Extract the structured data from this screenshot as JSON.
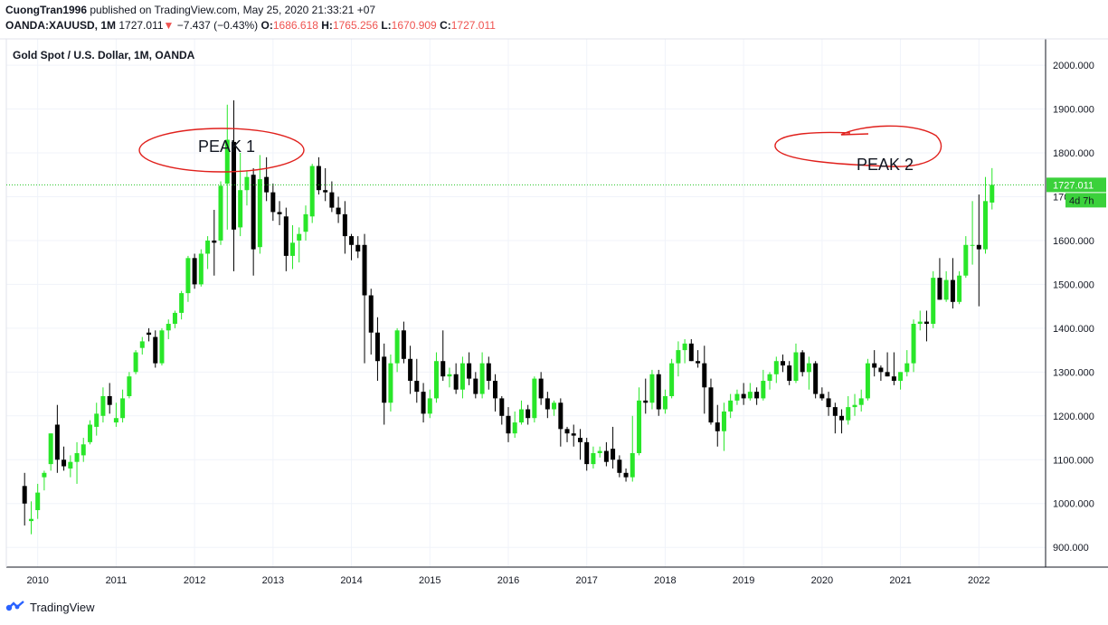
{
  "header": {
    "author": "CuongTran1996",
    "published_text": "published on TradingView.com, May 25, 2020 21:33:21 +07",
    "symbol": "OANDA:XAUUSD, 1M",
    "last": "1727.011",
    "change_arrow": "▼",
    "change": "−7.437 (−0.43%)",
    "o_label": "O:",
    "o_value": "1686.618",
    "h_label": "H:",
    "h_value": "1765.256",
    "l_label": "L:",
    "l_value": "1670.909",
    "c_label": "C:",
    "c_value": "1727.011"
  },
  "footer": {
    "brand": "TradingView"
  },
  "colors": {
    "up": "#29e629",
    "down": "#000000",
    "annotation": "#e0201c",
    "price_line": "#22c422",
    "grid": "#f0f3fa"
  },
  "chart_data": {
    "type": "candlestick",
    "title": "Gold Spot / U.S. Dollar, 1M, OANDA",
    "timeframe": "1M",
    "x_tick_labels": [
      "2010",
      "2011",
      "2012",
      "2013",
      "2014",
      "2015",
      "2016",
      "2017",
      "2018",
      "2019",
      "2020",
      "2021",
      "2022"
    ],
    "y_tick_labels": [
      "900.000",
      "1000.000",
      "1100.000",
      "1200.000",
      "1300.000",
      "1400.000",
      "1500.000",
      "1600.000",
      "1700.000",
      "1800.000",
      "1900.000",
      "2000.000"
    ],
    "ylim": [
      855,
      2060
    ],
    "xlim": [
      2009.6,
      2022.85
    ],
    "grid": true,
    "current_price": 1727.011,
    "current_price_label": "1727.011",
    "countdown_label": "4d 7h",
    "annotations": [
      {
        "text": "PEAK 1",
        "date": "2012.0",
        "price": 1800
      },
      {
        "text": "PEAK 2",
        "date": "2020.45",
        "price": 1752
      }
    ],
    "candles": [
      {
        "t": 2009.833,
        "o": 1040,
        "h": 1070,
        "l": 950,
        "c": 1000
      },
      {
        "t": 2009.917,
        "o": 960,
        "h": 1005,
        "l": 930,
        "c": 965
      },
      {
        "t": 2010.0,
        "o": 985,
        "h": 1045,
        "l": 965,
        "c": 1025
      },
      {
        "t": 2010.083,
        "o": 1060,
        "h": 1075,
        "l": 1030,
        "c": 1070
      },
      {
        "t": 2010.167,
        "o": 1090,
        "h": 1160,
        "l": 1075,
        "c": 1160
      },
      {
        "t": 2010.25,
        "o": 1180,
        "h": 1225,
        "l": 1070,
        "c": 1100
      },
      {
        "t": 2010.333,
        "o": 1100,
        "h": 1130,
        "l": 1075,
        "c": 1085
      },
      {
        "t": 2010.417,
        "o": 1080,
        "h": 1110,
        "l": 1060,
        "c": 1095
      },
      {
        "t": 2010.5,
        "o": 1095,
        "h": 1140,
        "l": 1045,
        "c": 1115
      },
      {
        "t": 2010.583,
        "o": 1110,
        "h": 1150,
        "l": 1095,
        "c": 1135
      },
      {
        "t": 2010.667,
        "o": 1140,
        "h": 1190,
        "l": 1135,
        "c": 1180
      },
      {
        "t": 2010.75,
        "o": 1175,
        "h": 1230,
        "l": 1155,
        "c": 1205
      },
      {
        "t": 2010.833,
        "o": 1200,
        "h": 1265,
        "l": 1185,
        "c": 1245
      },
      {
        "t": 2010.917,
        "o": 1245,
        "h": 1275,
        "l": 1205,
        "c": 1225
      },
      {
        "t": 2011.0,
        "o": 1185,
        "h": 1230,
        "l": 1175,
        "c": 1195
      },
      {
        "t": 2011.083,
        "o": 1195,
        "h": 1260,
        "l": 1185,
        "c": 1240
      },
      {
        "t": 2011.167,
        "o": 1245,
        "h": 1300,
        "l": 1240,
        "c": 1290
      },
      {
        "t": 2011.25,
        "o": 1300,
        "h": 1350,
        "l": 1295,
        "c": 1345
      },
      {
        "t": 2011.333,
        "o": 1355,
        "h": 1380,
        "l": 1340,
        "c": 1370
      },
      {
        "t": 2011.417,
        "o": 1390,
        "h": 1400,
        "l": 1370,
        "c": 1385
      },
      {
        "t": 2011.5,
        "o": 1380,
        "h": 1395,
        "l": 1310,
        "c": 1320
      },
      {
        "t": 2011.583,
        "o": 1320,
        "h": 1400,
        "l": 1315,
        "c": 1395
      },
      {
        "t": 2011.667,
        "o": 1395,
        "h": 1420,
        "l": 1375,
        "c": 1410
      },
      {
        "t": 2011.75,
        "o": 1410,
        "h": 1440,
        "l": 1400,
        "c": 1435
      },
      {
        "t": 2011.833,
        "o": 1435,
        "h": 1485,
        "l": 1420,
        "c": 1480
      },
      {
        "t": 2011.917,
        "o": 1480,
        "h": 1565,
        "l": 1460,
        "c": 1560
      },
      {
        "t": 2012.0,
        "o": 1560,
        "h": 1570,
        "l": 1490,
        "c": 1500
      },
      {
        "t": 2012.083,
        "o": 1500,
        "h": 1580,
        "l": 1495,
        "c": 1570
      },
      {
        "t": 2012.167,
        "o": 1570,
        "h": 1610,
        "l": 1535,
        "c": 1600
      },
      {
        "t": 2012.25,
        "o": 1600,
        "h": 1670,
        "l": 1520,
        "c": 1595
      },
      {
        "t": 2012.333,
        "o": 1600,
        "h": 1735,
        "l": 1590,
        "c": 1725
      },
      {
        "t": 2012.417,
        "o": 1730,
        "h": 1910,
        "l": 1625,
        "c": 1830
      },
      {
        "t": 2012.5,
        "o": 1825,
        "h": 1920,
        "l": 1530,
        "c": 1625
      },
      {
        "t": 2012.583,
        "o": 1630,
        "h": 1800,
        "l": 1610,
        "c": 1715
      },
      {
        "t": 2012.667,
        "o": 1715,
        "h": 1760,
        "l": 1680,
        "c": 1745
      },
      {
        "t": 2012.75,
        "o": 1750,
        "h": 1765,
        "l": 1520,
        "c": 1580
      },
      {
        "t": 2012.833,
        "o": 1585,
        "h": 1795,
        "l": 1570,
        "c": 1740
      },
      {
        "t": 2012.917,
        "o": 1745,
        "h": 1790,
        "l": 1690,
        "c": 1710
      },
      {
        "t": 2013.0,
        "o": 1710,
        "h": 1730,
        "l": 1645,
        "c": 1665
      },
      {
        "t": 2013.083,
        "o": 1665,
        "h": 1690,
        "l": 1635,
        "c": 1660
      },
      {
        "t": 2013.167,
        "o": 1655,
        "h": 1675,
        "l": 1530,
        "c": 1565
      },
      {
        "t": 2013.25,
        "o": 1565,
        "h": 1635,
        "l": 1535,
        "c": 1595
      },
      {
        "t": 2013.333,
        "o": 1600,
        "h": 1630,
        "l": 1550,
        "c": 1615
      },
      {
        "t": 2013.417,
        "o": 1620,
        "h": 1680,
        "l": 1600,
        "c": 1660
      },
      {
        "t": 2013.5,
        "o": 1655,
        "h": 1775,
        "l": 1640,
        "c": 1770
      },
      {
        "t": 2013.583,
        "o": 1770,
        "h": 1790,
        "l": 1705,
        "c": 1715
      },
      {
        "t": 2013.667,
        "o": 1715,
        "h": 1765,
        "l": 1690,
        "c": 1710
      },
      {
        "t": 2013.75,
        "o": 1710,
        "h": 1735,
        "l": 1665,
        "c": 1675
      },
      {
        "t": 2013.833,
        "o": 1675,
        "h": 1700,
        "l": 1640,
        "c": 1660
      },
      {
        "t": 2013.917,
        "o": 1660,
        "h": 1690,
        "l": 1570,
        "c": 1610
      },
      {
        "t": 2014.0,
        "o": 1610,
        "h": 1615,
        "l": 1555,
        "c": 1590
      },
      {
        "t": 2014.083,
        "o": 1590,
        "h": 1610,
        "l": 1560,
        "c": 1575
      },
      {
        "t": 2014.167,
        "o": 1590,
        "h": 1615,
        "l": 1320,
        "c": 1475
      },
      {
        "t": 2014.25,
        "o": 1475,
        "h": 1490,
        "l": 1340,
        "c": 1390
      },
      {
        "t": 2014.333,
        "o": 1390,
        "h": 1425,
        "l": 1280,
        "c": 1325
      },
      {
        "t": 2014.417,
        "o": 1335,
        "h": 1365,
        "l": 1180,
        "c": 1230
      },
      {
        "t": 2014.5,
        "o": 1230,
        "h": 1340,
        "l": 1210,
        "c": 1320
      },
      {
        "t": 2014.583,
        "o": 1320,
        "h": 1400,
        "l": 1300,
        "c": 1395
      },
      {
        "t": 2014.667,
        "o": 1395,
        "h": 1415,
        "l": 1320,
        "c": 1330
      },
      {
        "t": 2014.75,
        "o": 1330,
        "h": 1360,
        "l": 1250,
        "c": 1280
      },
      {
        "t": 2014.833,
        "o": 1280,
        "h": 1330,
        "l": 1230,
        "c": 1255
      },
      {
        "t": 2014.917,
        "o": 1255,
        "h": 1275,
        "l": 1185,
        "c": 1205
      },
      {
        "t": 2015.0,
        "o": 1205,
        "h": 1260,
        "l": 1195,
        "c": 1240
      },
      {
        "t": 2015.083,
        "o": 1240,
        "h": 1345,
        "l": 1230,
        "c": 1325
      },
      {
        "t": 2015.167,
        "o": 1325,
        "h": 1395,
        "l": 1280,
        "c": 1290
      },
      {
        "t": 2015.25,
        "o": 1290,
        "h": 1310,
        "l": 1265,
        "c": 1295
      },
      {
        "t": 2015.333,
        "o": 1295,
        "h": 1320,
        "l": 1250,
        "c": 1260
      },
      {
        "t": 2015.417,
        "o": 1260,
        "h": 1335,
        "l": 1240,
        "c": 1320
      },
      {
        "t": 2015.5,
        "o": 1320,
        "h": 1345,
        "l": 1270,
        "c": 1285
      },
      {
        "t": 2015.583,
        "o": 1285,
        "h": 1300,
        "l": 1240,
        "c": 1250
      },
      {
        "t": 2015.667,
        "o": 1250,
        "h": 1345,
        "l": 1240,
        "c": 1320
      },
      {
        "t": 2015.75,
        "o": 1320,
        "h": 1335,
        "l": 1260,
        "c": 1280
      },
      {
        "t": 2015.833,
        "o": 1280,
        "h": 1295,
        "l": 1210,
        "c": 1240
      },
      {
        "t": 2015.917,
        "o": 1240,
        "h": 1245,
        "l": 1180,
        "c": 1200
      },
      {
        "t": 2016.0,
        "o": 1200,
        "h": 1220,
        "l": 1140,
        "c": 1160
      },
      {
        "t": 2016.083,
        "o": 1160,
        "h": 1210,
        "l": 1150,
        "c": 1185
      },
      {
        "t": 2016.167,
        "o": 1185,
        "h": 1235,
        "l": 1180,
        "c": 1215
      },
      {
        "t": 2016.25,
        "o": 1215,
        "h": 1225,
        "l": 1180,
        "c": 1195
      },
      {
        "t": 2016.333,
        "o": 1195,
        "h": 1290,
        "l": 1185,
        "c": 1285
      },
      {
        "t": 2016.417,
        "o": 1285,
        "h": 1300,
        "l": 1225,
        "c": 1240
      },
      {
        "t": 2016.5,
        "o": 1240,
        "h": 1255,
        "l": 1195,
        "c": 1215
      },
      {
        "t": 2016.583,
        "o": 1215,
        "h": 1235,
        "l": 1200,
        "c": 1230
      },
      {
        "t": 2016.667,
        "o": 1230,
        "h": 1240,
        "l": 1130,
        "c": 1170
      },
      {
        "t": 2016.75,
        "o": 1170,
        "h": 1175,
        "l": 1140,
        "c": 1160
      },
      {
        "t": 2016.833,
        "o": 1160,
        "h": 1180,
        "l": 1130,
        "c": 1155
      },
      {
        "t": 2016.917,
        "o": 1150,
        "h": 1170,
        "l": 1100,
        "c": 1140
      },
      {
        "t": 2017.0,
        "o": 1140,
        "h": 1150,
        "l": 1075,
        "c": 1090
      },
      {
        "t": 2017.083,
        "o": 1090,
        "h": 1130,
        "l": 1080,
        "c": 1115
      },
      {
        "t": 2017.167,
        "o": 1115,
        "h": 1130,
        "l": 1105,
        "c": 1120
      },
      {
        "t": 2017.25,
        "o": 1120,
        "h": 1140,
        "l": 1085,
        "c": 1095
      },
      {
        "t": 2017.333,
        "o": 1125,
        "h": 1175,
        "l": 1080,
        "c": 1100
      },
      {
        "t": 2017.417,
        "o": 1100,
        "h": 1110,
        "l": 1060,
        "c": 1070
      },
      {
        "t": 2017.5,
        "o": 1070,
        "h": 1080,
        "l": 1050,
        "c": 1060
      },
      {
        "t": 2017.583,
        "o": 1060,
        "h": 1200,
        "l": 1050,
        "c": 1115
      },
      {
        "t": 2017.667,
        "o": 1115,
        "h": 1265,
        "l": 1110,
        "c": 1235
      },
      {
        "t": 2017.75,
        "o": 1235,
        "h": 1285,
        "l": 1205,
        "c": 1230
      },
      {
        "t": 2017.833,
        "o": 1230,
        "h": 1305,
        "l": 1215,
        "c": 1295
      },
      {
        "t": 2017.917,
        "o": 1295,
        "h": 1305,
        "l": 1200,
        "c": 1215
      },
      {
        "t": 2018.0,
        "o": 1215,
        "h": 1260,
        "l": 1205,
        "c": 1245
      },
      {
        "t": 2018.083,
        "o": 1245,
        "h": 1330,
        "l": 1240,
        "c": 1320
      },
      {
        "t": 2018.167,
        "o": 1320,
        "h": 1370,
        "l": 1290,
        "c": 1350
      },
      {
        "t": 2018.25,
        "o": 1350,
        "h": 1375,
        "l": 1320,
        "c": 1365
      },
      {
        "t": 2018.333,
        "o": 1365,
        "h": 1375,
        "l": 1325,
        "c": 1325
      },
      {
        "t": 2018.417,
        "o": 1325,
        "h": 1350,
        "l": 1310,
        "c": 1320
      },
      {
        "t": 2018.5,
        "o": 1320,
        "h": 1360,
        "l": 1205,
        "c": 1265
      },
      {
        "t": 2018.583,
        "o": 1265,
        "h": 1285,
        "l": 1180,
        "c": 1185
      },
      {
        "t": 2018.667,
        "o": 1185,
        "h": 1225,
        "l": 1130,
        "c": 1165
      },
      {
        "t": 2018.75,
        "o": 1165,
        "h": 1230,
        "l": 1120,
        "c": 1210
      },
      {
        "t": 2018.833,
        "o": 1210,
        "h": 1250,
        "l": 1195,
        "c": 1235
      },
      {
        "t": 2018.917,
        "o": 1235,
        "h": 1260,
        "l": 1225,
        "c": 1250
      },
      {
        "t": 2019.0,
        "o": 1250,
        "h": 1275,
        "l": 1225,
        "c": 1240
      },
      {
        "t": 2019.083,
        "o": 1240,
        "h": 1275,
        "l": 1235,
        "c": 1255
      },
      {
        "t": 2019.167,
        "o": 1255,
        "h": 1265,
        "l": 1225,
        "c": 1240
      },
      {
        "t": 2019.25,
        "o": 1240,
        "h": 1305,
        "l": 1235,
        "c": 1280
      },
      {
        "t": 2019.333,
        "o": 1280,
        "h": 1300,
        "l": 1260,
        "c": 1295
      },
      {
        "t": 2019.417,
        "o": 1295,
        "h": 1335,
        "l": 1275,
        "c": 1325
      },
      {
        "t": 2019.5,
        "o": 1325,
        "h": 1340,
        "l": 1300,
        "c": 1315
      },
      {
        "t": 2019.583,
        "o": 1315,
        "h": 1325,
        "l": 1270,
        "c": 1280
      },
      {
        "t": 2019.667,
        "o": 1280,
        "h": 1365,
        "l": 1275,
        "c": 1345
      },
      {
        "t": 2019.75,
        "o": 1345,
        "h": 1350,
        "l": 1290,
        "c": 1300
      },
      {
        "t": 2019.833,
        "o": 1300,
        "h": 1335,
        "l": 1260,
        "c": 1320
      },
      {
        "t": 2019.917,
        "o": 1320,
        "h": 1325,
        "l": 1240,
        "c": 1250
      },
      {
        "t": 2020.0,
        "o": 1250,
        "h": 1265,
        "l": 1235,
        "c": 1240
      },
      {
        "t": 2020.083,
        "o": 1240,
        "h": 1255,
        "l": 1200,
        "c": 1220
      },
      {
        "t": 2020.167,
        "o": 1220,
        "h": 1230,
        "l": 1160,
        "c": 1200
      },
      {
        "t": 2020.25,
        "o": 1200,
        "h": 1215,
        "l": 1160,
        "c": 1190
      },
      {
        "t": 2020.333,
        "o": 1190,
        "h": 1245,
        "l": 1180,
        "c": 1220
      },
      {
        "t": 2020.417,
        "o": 1220,
        "h": 1250,
        "l": 1200,
        "c": 1225
      },
      {
        "t": 2020.5,
        "o": 1225,
        "h": 1260,
        "l": 1210,
        "c": 1240
      },
      {
        "t": 2020.583,
        "o": 1240,
        "h": 1330,
        "l": 1235,
        "c": 1320
      },
      {
        "t": 2020.667,
        "o": 1320,
        "h": 1350,
        "l": 1290,
        "c": 1310
      },
      {
        "t": 2020.75,
        "o": 1310,
        "h": 1315,
        "l": 1280,
        "c": 1300
      },
      {
        "t": 2020.833,
        "o": 1300,
        "h": 1345,
        "l": 1290,
        "c": 1290
      },
      {
        "t": 2020.917,
        "o": 1290,
        "h": 1345,
        "l": 1270,
        "c": 1280
      },
      {
        "t": 2021.0,
        "o": 1280,
        "h": 1300,
        "l": 1260,
        "c": 1300
      },
      {
        "t": 2021.083,
        "o": 1300,
        "h": 1350,
        "l": 1290,
        "c": 1320
      },
      {
        "t": 2021.167,
        "o": 1320,
        "h": 1420,
        "l": 1300,
        "c": 1410
      },
      {
        "t": 2021.25,
        "o": 1410,
        "h": 1440,
        "l": 1395,
        "c": 1415
      },
      {
        "t": 2021.333,
        "o": 1415,
        "h": 1440,
        "l": 1370,
        "c": 1410
      },
      {
        "t": 2021.417,
        "o": 1410,
        "h": 1530,
        "l": 1400,
        "c": 1515
      },
      {
        "t": 2021.5,
        "o": 1515,
        "h": 1560,
        "l": 1465,
        "c": 1465
      },
      {
        "t": 2021.583,
        "o": 1465,
        "h": 1530,
        "l": 1460,
        "c": 1510
      },
      {
        "t": 2021.667,
        "o": 1510,
        "h": 1560,
        "l": 1445,
        "c": 1460
      },
      {
        "t": 2021.75,
        "o": 1460,
        "h": 1530,
        "l": 1455,
        "c": 1520
      },
      {
        "t": 2021.833,
        "o": 1520,
        "h": 1610,
        "l": 1515,
        "c": 1590
      },
      {
        "t": 2021.917,
        "o": 1590,
        "h": 1690,
        "l": 1545,
        "c": 1590
      },
      {
        "t": 2022.0,
        "o": 1590,
        "h": 1705,
        "l": 1450,
        "c": 1580
      },
      {
        "t": 2022.083,
        "o": 1580,
        "h": 1745,
        "l": 1570,
        "c": 1690
      },
      {
        "t": 2022.167,
        "o": 1686.618,
        "h": 1765.256,
        "l": 1670.909,
        "c": 1727.011
      }
    ]
  }
}
